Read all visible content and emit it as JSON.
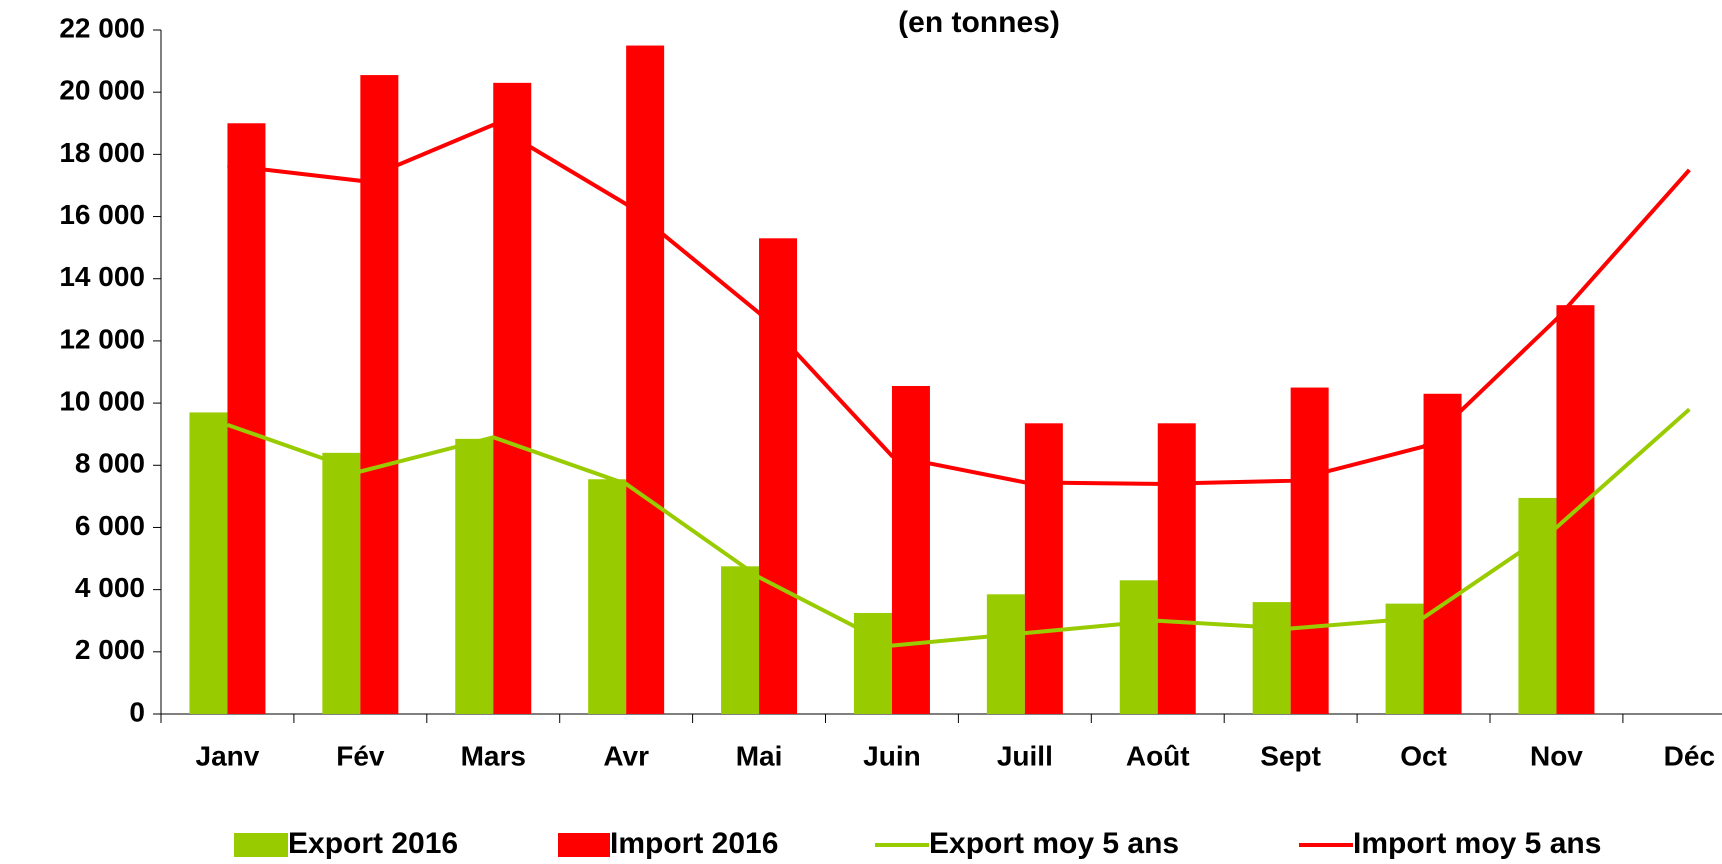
{
  "chart_data": {
    "type": "bar_line",
    "title": "(en tonnes)",
    "categories": [
      "Janv",
      "Fév",
      "Mars",
      "Avr",
      "Mai",
      "Juin",
      "Juill",
      "Août",
      "Sept",
      "Oct",
      "Nov",
      "Déc"
    ],
    "series": [
      {
        "name": "Export 2016",
        "color": "#99cc00",
        "kind": "bar",
        "values": [
          9700,
          8400,
          8850,
          7550,
          4750,
          3250,
          3850,
          4300,
          3600,
          3550,
          6950,
          null
        ]
      },
      {
        "name": "Import 2016",
        "color": "#ff0000",
        "kind": "bar",
        "values": [
          19000,
          20550,
          20300,
          21500,
          15300,
          10550,
          9350,
          9350,
          10500,
          10300,
          13150,
          null
        ]
      },
      {
        "name": "Export moy 5 ans",
        "color": "#99cc00",
        "kind": "line",
        "values": [
          9300,
          7800,
          8900,
          7400,
          4400,
          2200,
          2600,
          3000,
          2750,
          3100,
          6000,
          9800
        ]
      },
      {
        "name": "Import moy 5 ans",
        "color": "#ff0000",
        "kind": "line",
        "values": [
          17650,
          17150,
          18950,
          16400,
          12900,
          8300,
          7450,
          7400,
          7500,
          8600,
          12700,
          17500
        ]
      }
    ],
    "ylim": [
      0,
      22000
    ],
    "yticks": [
      0,
      {
        "value": 2000,
        "label": "2 000"
      },
      {
        "value": 4000,
        "label": "4 000"
      },
      {
        "value": 6000,
        "label": "6 000"
      },
      {
        "value": 8000,
        "label": "8 000"
      },
      {
        "value": 10000,
        "label": "10 000"
      },
      {
        "value": 12000,
        "label": "12 000"
      },
      {
        "value": 14000,
        "label": "14 000"
      },
      {
        "value": 16000,
        "label": "16 000"
      },
      {
        "value": 18000,
        "label": "18 000"
      },
      {
        "value": 20000,
        "label": "20 000"
      },
      {
        "value": 22000,
        "label": "22 000"
      }
    ],
    "grid": false,
    "legend": "bottom"
  }
}
